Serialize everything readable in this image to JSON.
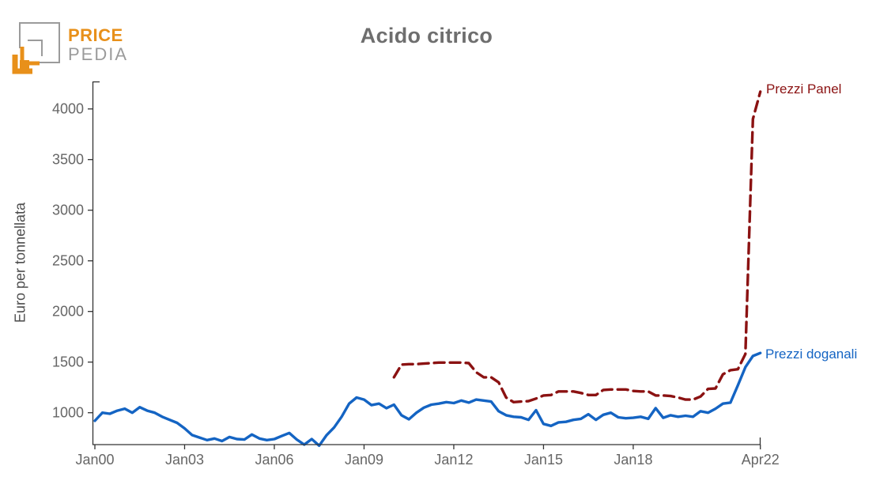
{
  "logo": {
    "brand_top": "PRICE",
    "brand_bottom": "PEDIA",
    "orange": "#E8901A",
    "gray": "#9B9B9B"
  },
  "annotations": {
    "panel_label": "Prezzi Panel",
    "doganali_label": "Prezzi doganali"
  },
  "axis_colors": {
    "spine": "#333333",
    "tick_label": "#666666"
  },
  "chart_data": {
    "type": "line",
    "title": "Acido citrico",
    "xlabel": "",
    "ylabel": "Euro per tonnellata",
    "grid": false,
    "legend_position": "end-of-line labels",
    "ylim": [
      650,
      4280
    ],
    "xlim": [
      "2000-01",
      "2022-04"
    ],
    "y_ticks": [
      1000,
      1500,
      2000,
      2500,
      3000,
      3500,
      4000
    ],
    "x_ticks": [
      {
        "label": "Jan00",
        "pos": "2000-01"
      },
      {
        "label": "Jan03",
        "pos": "2003-01"
      },
      {
        "label": "Jan06",
        "pos": "2006-01"
      },
      {
        "label": "Jan09",
        "pos": "2009-01"
      },
      {
        "label": "Jan12",
        "pos": "2012-01"
      },
      {
        "label": "Jan15",
        "pos": "2015-01"
      },
      {
        "label": "Jan18",
        "pos": "2018-01"
      },
      {
        "label": "Apr22",
        "pos": "2022-04"
      }
    ],
    "x": [
      "2000-01",
      "2000-04",
      "2000-07",
      "2000-10",
      "2001-01",
      "2001-04",
      "2001-07",
      "2001-10",
      "2002-01",
      "2002-04",
      "2002-07",
      "2002-10",
      "2003-01",
      "2003-04",
      "2003-07",
      "2003-10",
      "2004-01",
      "2004-04",
      "2004-07",
      "2004-10",
      "2005-01",
      "2005-04",
      "2005-07",
      "2005-10",
      "2006-01",
      "2006-04",
      "2006-07",
      "2006-10",
      "2007-01",
      "2007-04",
      "2007-07",
      "2007-10",
      "2008-01",
      "2008-04",
      "2008-07",
      "2008-10",
      "2009-01",
      "2009-04",
      "2009-07",
      "2009-10",
      "2010-01",
      "2010-04",
      "2010-07",
      "2010-10",
      "2011-01",
      "2011-04",
      "2011-07",
      "2011-10",
      "2012-01",
      "2012-04",
      "2012-07",
      "2012-10",
      "2013-01",
      "2013-04",
      "2013-07",
      "2013-10",
      "2014-01",
      "2014-04",
      "2014-07",
      "2014-10",
      "2015-01",
      "2015-04",
      "2015-07",
      "2015-10",
      "2016-01",
      "2016-04",
      "2016-07",
      "2016-10",
      "2017-01",
      "2017-04",
      "2017-07",
      "2017-10",
      "2018-01",
      "2018-04",
      "2018-07",
      "2018-10",
      "2019-01",
      "2019-04",
      "2019-07",
      "2019-10",
      "2020-01",
      "2020-04",
      "2020-07",
      "2020-10",
      "2021-01",
      "2021-04",
      "2021-07",
      "2021-10",
      "2022-01",
      "2022-04"
    ],
    "series": [
      {
        "name": "Prezzi Panel",
        "color": "#8B1212",
        "dash": true,
        "values": [
          null,
          null,
          null,
          null,
          null,
          null,
          null,
          null,
          null,
          null,
          null,
          null,
          null,
          null,
          null,
          null,
          null,
          null,
          null,
          null,
          null,
          null,
          null,
          null,
          null,
          null,
          null,
          null,
          null,
          null,
          null,
          null,
          null,
          null,
          null,
          null,
          null,
          null,
          null,
          null,
          1350,
          1475,
          1480,
          1480,
          1485,
          1490,
          1495,
          1495,
          1495,
          1495,
          1490,
          1400,
          1350,
          1350,
          1300,
          1150,
          1105,
          1110,
          1115,
          1140,
          1170,
          1175,
          1210,
          1210,
          1210,
          1195,
          1175,
          1175,
          1225,
          1230,
          1230,
          1230,
          1215,
          1210,
          1210,
          1170,
          1170,
          1165,
          1150,
          1130,
          1130,
          1160,
          1235,
          1240,
          1380,
          1420,
          1430,
          1580,
          3900,
          4170
        ]
      },
      {
        "name": "Prezzi doganali",
        "color": "#1464C3",
        "dash": false,
        "values": [
          920,
          1000,
          990,
          1020,
          1040,
          1000,
          1055,
          1020,
          1000,
          960,
          930,
          900,
          845,
          780,
          755,
          730,
          745,
          720,
          760,
          740,
          735,
          785,
          745,
          730,
          740,
          770,
          800,
          735,
          685,
          740,
          675,
          780,
          855,
          960,
          1090,
          1150,
          1130,
          1075,
          1090,
          1045,
          1080,
          975,
          935,
          1000,
          1050,
          1080,
          1090,
          1105,
          1095,
          1120,
          1100,
          1130,
          1120,
          1110,
          1015,
          975,
          960,
          955,
          930,
          1025,
          890,
          870,
          905,
          910,
          930,
          940,
          985,
          930,
          980,
          1000,
          955,
          945,
          950,
          960,
          940,
          1045,
          950,
          975,
          960,
          970,
          960,
          1015,
          1000,
          1040,
          1090,
          1100,
          1270,
          1450,
          1560,
          1590
        ]
      }
    ]
  }
}
